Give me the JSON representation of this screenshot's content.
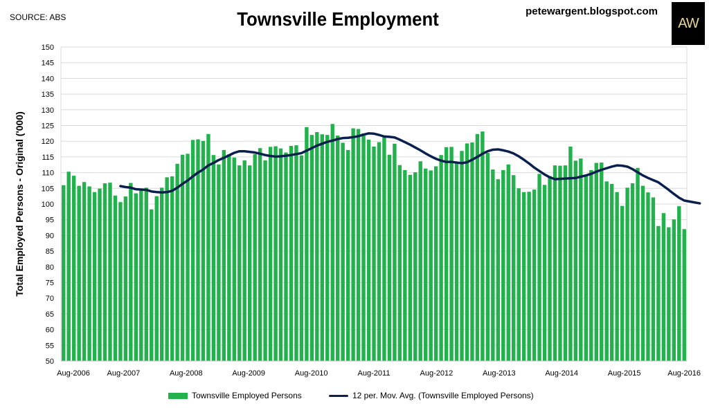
{
  "source_label": "SOURCE: ABS",
  "blog_label": "petewargent.blogspot.com",
  "logo_text": "AW",
  "colors": {
    "bars": "#22b14c",
    "line": "#0b1f4e",
    "grid": "#d9d9d9"
  },
  "chart_data": {
    "type": "bar",
    "title": "Townsville Employment",
    "xlabel": "",
    "ylabel": "Total Employed Persons - Original ('000)",
    "ylim": [
      50,
      150
    ],
    "yticks": [
      50,
      55,
      60,
      65,
      70,
      75,
      80,
      85,
      90,
      95,
      100,
      105,
      110,
      115,
      120,
      125,
      130,
      135,
      140,
      145,
      150
    ],
    "grid": true,
    "legend_position": "bottom",
    "x_tick_labels": [
      "Aug-2006",
      "Aug-2007",
      "Aug-2008",
      "Aug-2009",
      "Aug-2010",
      "Aug-2011",
      "Aug-2012",
      "Aug-2013",
      "Aug-2014",
      "Aug-2015",
      "Aug-2016"
    ],
    "x_start": "Aug-2006",
    "x_end": "Aug-2016",
    "series": [
      {
        "name": "Townsville Employed Persons",
        "type": "bar",
        "values": [
          106.0,
          110.3,
          109.0,
          105.8,
          107.0,
          105.6,
          103.8,
          104.9,
          106.6,
          106.8,
          102.7,
          100.6,
          102.4,
          106.7,
          103.4,
          104.5,
          105.2,
          98.3,
          102.5,
          105.2,
          108.5,
          108.8,
          112.8,
          115.7,
          116.0,
          120.4,
          120.6,
          120.1,
          122.3,
          115.6,
          112.6,
          117.2,
          115.8,
          114.8,
          112.3,
          113.9,
          112.3,
          115.9,
          117.8,
          113.9,
          118.2,
          118.4,
          117.7,
          116.4,
          118.5,
          118.7,
          115.5,
          124.5,
          122.0,
          122.9,
          122.2,
          122.0,
          125.5,
          121.8,
          119.5,
          117.2,
          124.1,
          123.9,
          122.5,
          120.5,
          118.3,
          119.7,
          121.2,
          115.7,
          119.2,
          112.4,
          110.8,
          109.3,
          110.1,
          113.6,
          111.3,
          110.7,
          112.0,
          115.6,
          118.1,
          118.2,
          113.4,
          116.9,
          119.3,
          119.6,
          122.3,
          123.1,
          116.3,
          111.0,
          107.9,
          110.8,
          112.6,
          109.2,
          105.0,
          103.8,
          103.9,
          104.6,
          109.6,
          106.1,
          108.9,
          112.3,
          112.2,
          112.3,
          118.3,
          113.8,
          114.5,
          109.2,
          110.8,
          113.1,
          113.2,
          107.2,
          106.4,
          103.8,
          99.4,
          105.2,
          106.6,
          111.5,
          105.8,
          103.7,
          102.1,
          93.0,
          97.1,
          92.6,
          95.1,
          99.3,
          92.0
        ]
      },
      {
        "name": "12 per. Mov. Avg. (Townsville Employed Persons)",
        "type": "line",
        "values": [
          null,
          null,
          null,
          null,
          null,
          null,
          null,
          null,
          null,
          null,
          null,
          105.7,
          105.4,
          105.2,
          104.7,
          104.6,
          104.5,
          104.0,
          103.8,
          103.7,
          103.8,
          104.2,
          105.2,
          106.4,
          107.5,
          108.8,
          110.0,
          111.0,
          112.3,
          113.1,
          114.0,
          114.7,
          115.5,
          116.3,
          116.8,
          116.8,
          116.6,
          116.4,
          116.0,
          115.6,
          115.3,
          115.1,
          115.2,
          115.4,
          115.6,
          115.9,
          116.2,
          117.0,
          117.8,
          118.6,
          119.2,
          119.8,
          120.2,
          120.7,
          121.0,
          121.1,
          121.3,
          121.6,
          122.1,
          122.5,
          122.4,
          122.0,
          121.5,
          121.4,
          121.2,
          120.5,
          119.7,
          118.9,
          118.0,
          117.1,
          116.1,
          115.2,
          114.4,
          113.8,
          113.4,
          113.4,
          113.2,
          113.0,
          113.3,
          114.1,
          115.0,
          116.0,
          116.8,
          117.3,
          117.4,
          117.1,
          116.7,
          116.1,
          115.2,
          114.1,
          112.9,
          111.6,
          110.5,
          109.4,
          108.5,
          107.9,
          108.0,
          108.1,
          108.2,
          108.3,
          108.7,
          109.1,
          109.6,
          110.3,
          110.9,
          111.4,
          111.9,
          112.3,
          112.2,
          111.9,
          111.1,
          110.1,
          109.1,
          108.3,
          107.6,
          106.9,
          105.7,
          104.5,
          103.2,
          102.0,
          101.1,
          100.8,
          100.5,
          100.2
        ]
      }
    ]
  }
}
